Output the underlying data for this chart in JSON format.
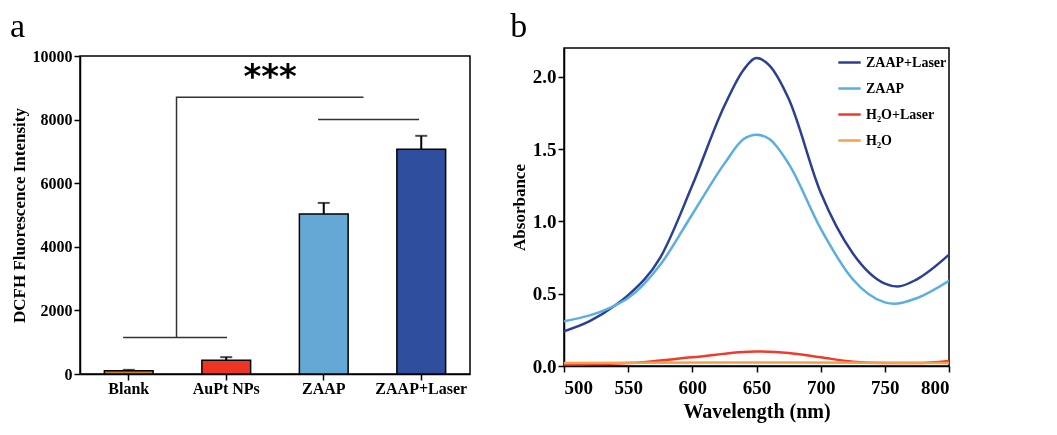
{
  "chart_data": [
    {
      "type": "bar",
      "title": "a",
      "ylabel": "DCFH  Fluorescence Intensity",
      "categories": [
        "Blank",
        "AuPt NPs",
        "ZAAP",
        "ZAAP+Laser"
      ],
      "values": [
        100,
        430,
        5030,
        7070
      ],
      "errors": [
        30,
        100,
        350,
        420
      ],
      "colors": [
        "#c8822a",
        "#ee3524",
        "#64a8d6",
        "#2f4f9e"
      ],
      "ylim": [
        0,
        10000
      ],
      "yticks": [
        0,
        2000,
        4000,
        6000,
        8000,
        10000
      ],
      "annotations": [
        "***"
      ]
    },
    {
      "type": "line",
      "title": "b",
      "xlabel": "Wavelength (nm)",
      "ylabel": "Absorbance",
      "xlim": [
        500,
        800
      ],
      "xticks": [
        500,
        550,
        600,
        650,
        700,
        750,
        800
      ],
      "ylim": [
        0,
        2.2
      ],
      "yticks": [
        {
          "value": 0,
          "label": "0.0"
        },
        0.5,
        {
          "value": 1,
          "label": "1.0"
        },
        1.5,
        {
          "value": 2,
          "label": "2.0"
        }
      ],
      "legend": "top right",
      "series": [
        {
          "name": "ZAAP+Laser",
          "color": "#2b3f93",
          "x": [
            500,
            520,
            540,
            550,
            575,
            600,
            625,
            640,
            650,
            660,
            675,
            700,
            725,
            750,
            760,
            775,
            800
          ],
          "values": [
            0.24,
            0.31,
            0.42,
            0.49,
            0.75,
            1.25,
            1.8,
            2.05,
            2.13,
            2.08,
            1.85,
            1.2,
            0.78,
            0.57,
            0.55,
            0.6,
            0.77
          ]
        },
        {
          "name": "ZAAP",
          "color": "#5aaee0",
          "x": [
            500,
            520,
            540,
            550,
            575,
            600,
            625,
            640,
            650,
            660,
            675,
            700,
            725,
            750,
            757,
            775,
            800
          ],
          "values": [
            0.31,
            0.35,
            0.42,
            0.47,
            0.7,
            1.05,
            1.4,
            1.57,
            1.6,
            1.57,
            1.4,
            0.95,
            0.6,
            0.44,
            0.43,
            0.47,
            0.59
          ]
        },
        {
          "name": "H₂O+Laser",
          "color": "#f03a2a",
          "x": [
            500,
            550,
            600,
            650,
            675,
            700,
            725,
            750,
            775,
            800
          ],
          "values": [
            0.01,
            0.02,
            0.06,
            0.1,
            0.09,
            0.06,
            0.03,
            0.02,
            0.02,
            0.035
          ]
        },
        {
          "name": "H₂O",
          "color": "#f5a04a",
          "x": [
            500,
            650,
            800
          ],
          "values": [
            0.02,
            0.025,
            0.02
          ]
        }
      ]
    }
  ]
}
